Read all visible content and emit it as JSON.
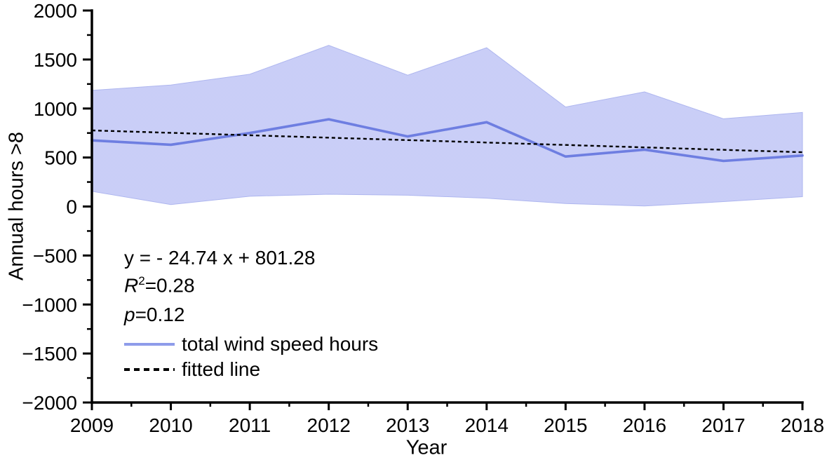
{
  "figure": {
    "background": "#ffffff"
  },
  "chart_data": {
    "type": "line",
    "title": "",
    "xlabel": "Year",
    "ylabel": "Annual hours >8",
    "xlim": [
      2009,
      2018
    ],
    "ylim": [
      -2000,
      2000
    ],
    "grid": false,
    "x_major_tick_step": 1,
    "x_minor_tick_step": 0.5,
    "y_major_tick_step": 500,
    "y_minor_tick_step": 250,
    "x_ticks": [
      {
        "v": 2009,
        "label": "2009"
      },
      {
        "v": 2010,
        "label": "2010"
      },
      {
        "v": 2011,
        "label": "2011"
      },
      {
        "v": 2012,
        "label": "2012"
      },
      {
        "v": 2013,
        "label": "2013"
      },
      {
        "v": 2014,
        "label": "2014"
      },
      {
        "v": 2015,
        "label": "2015"
      },
      {
        "v": 2016,
        "label": "2016"
      },
      {
        "v": 2017,
        "label": "2017"
      },
      {
        "v": 2018,
        "label": "2018"
      }
    ],
    "y_ticks": [
      {
        "v": 2000,
        "label": "2000"
      },
      {
        "v": 1500,
        "label": "1500"
      },
      {
        "v": 1000,
        "label": "1000"
      },
      {
        "v": 500,
        "label": "500"
      },
      {
        "v": 0,
        "label": "0"
      },
      {
        "v": -500,
        "label": "−500"
      },
      {
        "v": -1000,
        "label": "−1000"
      },
      {
        "v": -1500,
        "label": "−1500"
      },
      {
        "v": -2000,
        "label": "−2000"
      }
    ],
    "x": [
      2009,
      2010,
      2011,
      2012,
      2013,
      2014,
      2015,
      2016,
      2017,
      2018
    ],
    "series": [
      {
        "name": "total wind speed hours",
        "type": "line",
        "color": "#6e7ee1",
        "width": 3.6,
        "values": [
          675,
          630,
          750,
          890,
          715,
          860,
          510,
          580,
          465,
          520
        ]
      },
      {
        "name": "wind speed hours range band",
        "type": "band",
        "fill_colors": [
          "#d0d4f9",
          "#c3c8f5"
        ],
        "edge_color": "#aeb6ef",
        "upper": [
          1185,
          1240,
          1350,
          1645,
          1340,
          1620,
          1015,
          1170,
          895,
          960
        ],
        "lower": [
          155,
          20,
          105,
          125,
          115,
          85,
          30,
          5,
          50,
          100
        ]
      }
    ],
    "fit": {
      "name": "fitted line",
      "color": "#000000",
      "width": 2.4,
      "dash": [
        5,
        4
      ],
      "slope": -24.74,
      "intercept": 801.28,
      "x_index_start": 1
    },
    "annotations": {
      "equation": "y = - 24.74 x + 801.28",
      "r_squared": {
        "symbol": "R",
        "sup": "2",
        "rest": "=0.28"
      },
      "p_value": {
        "symbol": "p",
        "rest": "=0.12"
      }
    },
    "legend": {
      "position": "inside-lower-left",
      "items": [
        {
          "label": "total wind speed hours",
          "style": "solid",
          "color": "#8e9cea"
        },
        {
          "label": "fitted line",
          "style": "dashed",
          "color": "#000000"
        }
      ]
    }
  }
}
